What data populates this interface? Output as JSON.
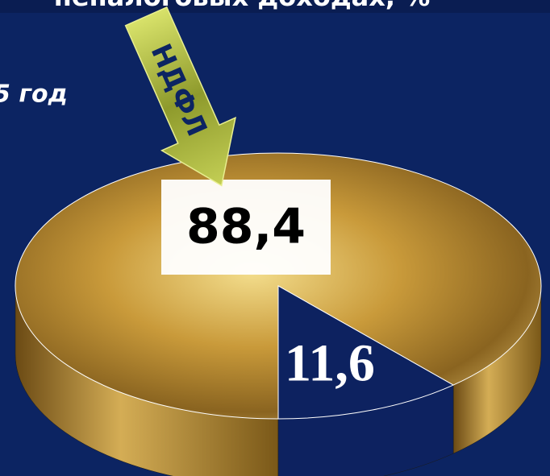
{
  "chart_data": {
    "type": "pie",
    "title": "неналоговых доходах, %",
    "subtitle": "5 год",
    "annotation": "НДФЛ",
    "values": [
      88.4,
      11.6
    ],
    "value_labels": [
      "88,4",
      "11,6"
    ],
    "colors": [
      "#c9a24a",
      "#0d2260"
    ]
  }
}
